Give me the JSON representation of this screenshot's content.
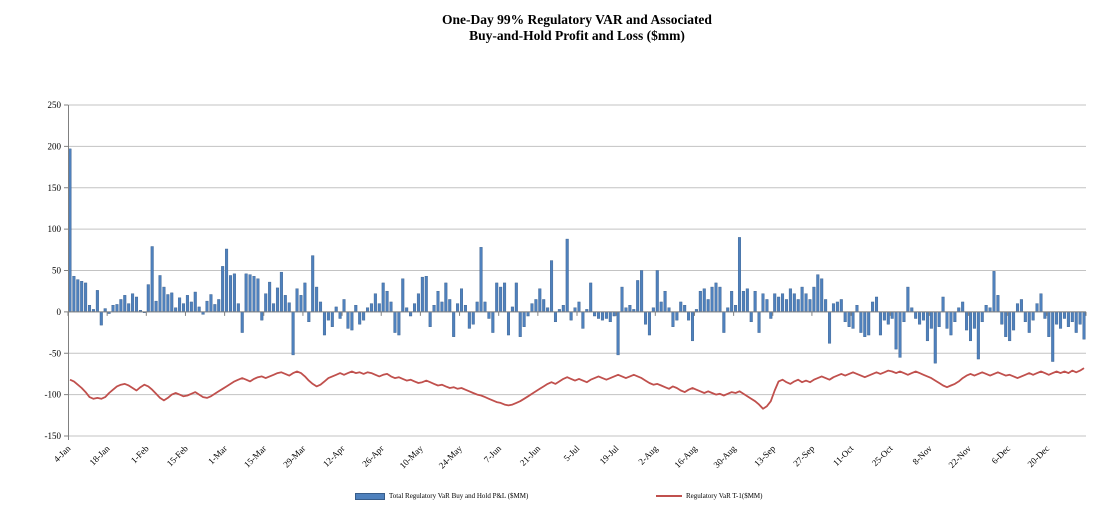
{
  "title": {
    "line1": "One-Day 99% Regulatory VAR and Associated",
    "line2": "Buy-and-Hold Profit and Loss ($mm)"
  },
  "colors": {
    "bar_fill": "#4F81BD",
    "bar_border": "#385D8A",
    "line": "#C0504D",
    "gridline": "#C3C3C3",
    "axis": "#808080",
    "text": "#000000"
  },
  "chart_data": {
    "type": "bar",
    "title": "One-Day 99% Regulatory VAR and Associated Buy-and-Hold Profit and Loss ($mm)",
    "xlabel": "",
    "ylabel": "",
    "ylim": [
      -150,
      250
    ],
    "y_ticks": [
      250,
      200,
      150,
      100,
      50,
      0,
      -50,
      -100,
      -150
    ],
    "grid": true,
    "legend_position": "bottom",
    "x_tick_interval": 10,
    "x_tick_labels": [
      "4-Jan",
      "18-Jan",
      "1-Feb",
      "15-Feb",
      "1-Mar",
      "15-Mar",
      "29-Mar",
      "12-Apr",
      "26-Apr",
      "10-May",
      "24-May",
      "7-Jun",
      "21-Jun",
      "5-Jul",
      "19-Jul",
      "2-Aug",
      "16-Aug",
      "30-Aug",
      "13-Sep",
      "27-Sep",
      "11-Oct",
      "25-Oct",
      "8-Nov",
      "22-Nov",
      "6-Dec",
      "20-Dec"
    ],
    "series": [
      {
        "name": "Total Regulatory VaR Buy and Hold P&L ($MM)",
        "type": "bar",
        "color": "#4F81BD",
        "values": [
          197,
          43,
          39,
          37,
          35,
          8,
          3,
          26,
          -16,
          4,
          -2,
          8,
          9,
          15,
          20,
          10,
          22,
          18,
          2,
          -1,
          33,
          79,
          13,
          44,
          30,
          21,
          23,
          5,
          17,
          10,
          20,
          12,
          24,
          6,
          -3,
          13,
          21,
          9,
          15,
          55,
          76,
          44,
          46,
          10,
          -25,
          46,
          45,
          43,
          40,
          -10,
          22,
          36,
          10,
          29,
          48,
          20,
          11,
          -52,
          28,
          20,
          35,
          -12,
          68,
          30,
          12,
          -28,
          -10,
          -18,
          6,
          -8,
          15,
          -20,
          -22,
          8,
          -15,
          -10,
          5,
          10,
          22,
          10,
          35,
          25,
          12,
          -25,
          -28,
          40,
          5,
          -5,
          10,
          22,
          42,
          43,
          -18,
          8,
          25,
          12,
          35,
          15,
          -30,
          10,
          28,
          8,
          -20,
          -15,
          12,
          78,
          12,
          -8,
          -25,
          35,
          30,
          35,
          -28,
          6,
          35,
          -30,
          -18,
          -5,
          10,
          15,
          28,
          15,
          5,
          62,
          -12,
          3,
          8,
          88,
          -10,
          5,
          12,
          -20,
          3,
          35,
          -5,
          -8,
          -10,
          -8,
          -12,
          -5,
          -52,
          30,
          5,
          8,
          3,
          38,
          50,
          -15,
          -28,
          5,
          50,
          12,
          25,
          5,
          -18,
          -10,
          12,
          8,
          -10,
          -35,
          3,
          25,
          28,
          15,
          30,
          35,
          30,
          -25,
          5,
          25,
          8,
          90,
          25,
          28,
          -12,
          25,
          -25,
          22,
          15,
          -8,
          22,
          18,
          22,
          15,
          28,
          22,
          15,
          30,
          22,
          15,
          30,
          45,
          40,
          15,
          -38,
          10,
          12,
          15,
          -12,
          -18,
          -20,
          8,
          -25,
          -30,
          -28,
          12,
          18,
          -28,
          -10,
          -15,
          -8,
          -45,
          -55,
          -12,
          30,
          5,
          -8,
          -15,
          -10,
          -35,
          -20,
          -62,
          -18,
          18,
          -20,
          -28,
          -12,
          5,
          12,
          -22,
          -35,
          -20,
          -57,
          -12,
          8,
          5,
          49,
          20,
          -15,
          -30,
          -35,
          -22,
          10,
          15,
          -12,
          -25,
          -10,
          10,
          22,
          -8,
          -30,
          -60,
          -15,
          -20,
          -8,
          -18,
          -12,
          -25,
          -15,
          -33
        ]
      },
      {
        "name": "Regulatory VaR T-1($MM)",
        "type": "line",
        "color": "#C0504D",
        "values": [
          -82,
          -84,
          -88,
          -92,
          -97,
          -103,
          -105,
          -104,
          -105,
          -103,
          -98,
          -94,
          -90,
          -88,
          -87,
          -89,
          -92,
          -95,
          -91,
          -88,
          -90,
          -94,
          -99,
          -104,
          -107,
          -104,
          -100,
          -98,
          -100,
          -102,
          -101,
          -99,
          -97,
          -100,
          -103,
          -104,
          -102,
          -99,
          -96,
          -93,
          -90,
          -87,
          -84,
          -82,
          -80,
          -82,
          -84,
          -81,
          -79,
          -78,
          -80,
          -78,
          -76,
          -74,
          -73,
          -75,
          -77,
          -74,
          -72,
          -74,
          -78,
          -83,
          -87,
          -90,
          -88,
          -84,
          -80,
          -78,
          -76,
          -74,
          -76,
          -74,
          -72,
          -74,
          -73,
          -75,
          -73,
          -74,
          -76,
          -78,
          -76,
          -75,
          -78,
          -80,
          -79,
          -81,
          -83,
          -82,
          -84,
          -86,
          -85,
          -83,
          -85,
          -87,
          -89,
          -88,
          -90,
          -92,
          -91,
          -93,
          -92,
          -94,
          -96,
          -98,
          -100,
          -101,
          -103,
          -105,
          -107,
          -109,
          -110,
          -112,
          -113,
          -112,
          -110,
          -108,
          -105,
          -102,
          -99,
          -96,
          -93,
          -90,
          -87,
          -85,
          -87,
          -84,
          -81,
          -79,
          -81,
          -83,
          -81,
          -83,
          -85,
          -82,
          -80,
          -78,
          -80,
          -82,
          -80,
          -78,
          -76,
          -78,
          -80,
          -78,
          -76,
          -78,
          -80,
          -83,
          -86,
          -88,
          -87,
          -89,
          -91,
          -93,
          -90,
          -92,
          -95,
          -97,
          -94,
          -92,
          -94,
          -96,
          -98,
          -96,
          -98,
          -100,
          -99,
          -101,
          -99,
          -97,
          -98,
          -96,
          -99,
          -102,
          -105,
          -108,
          -112,
          -117,
          -114,
          -108,
          -95,
          -84,
          -82,
          -85,
          -87,
          -84,
          -82,
          -85,
          -83,
          -85,
          -82,
          -80,
          -78,
          -80,
          -82,
          -79,
          -77,
          -75,
          -77,
          -75,
          -73,
          -75,
          -77,
          -79,
          -77,
          -75,
          -73,
          -75,
          -73,
          -71,
          -72,
          -74,
          -72,
          -74,
          -76,
          -74,
          -72,
          -74,
          -76,
          -78,
          -80,
          -83,
          -86,
          -89,
          -91,
          -89,
          -87,
          -84,
          -80,
          -77,
          -75,
          -77,
          -75,
          -73,
          -75,
          -77,
          -75,
          -73,
          -75,
          -77,
          -76,
          -78,
          -80,
          -78,
          -76,
          -74,
          -76,
          -74,
          -72,
          -74,
          -76,
          -74,
          -72,
          -74,
          -72,
          -74,
          -71,
          -73,
          -71,
          -68
        ]
      }
    ]
  },
  "legend": {
    "pnl_label": "Total Regulatory VaR Buy and Hold P&L ($MM)",
    "var_label": "Regulatory VaR T-1($MM)"
  }
}
